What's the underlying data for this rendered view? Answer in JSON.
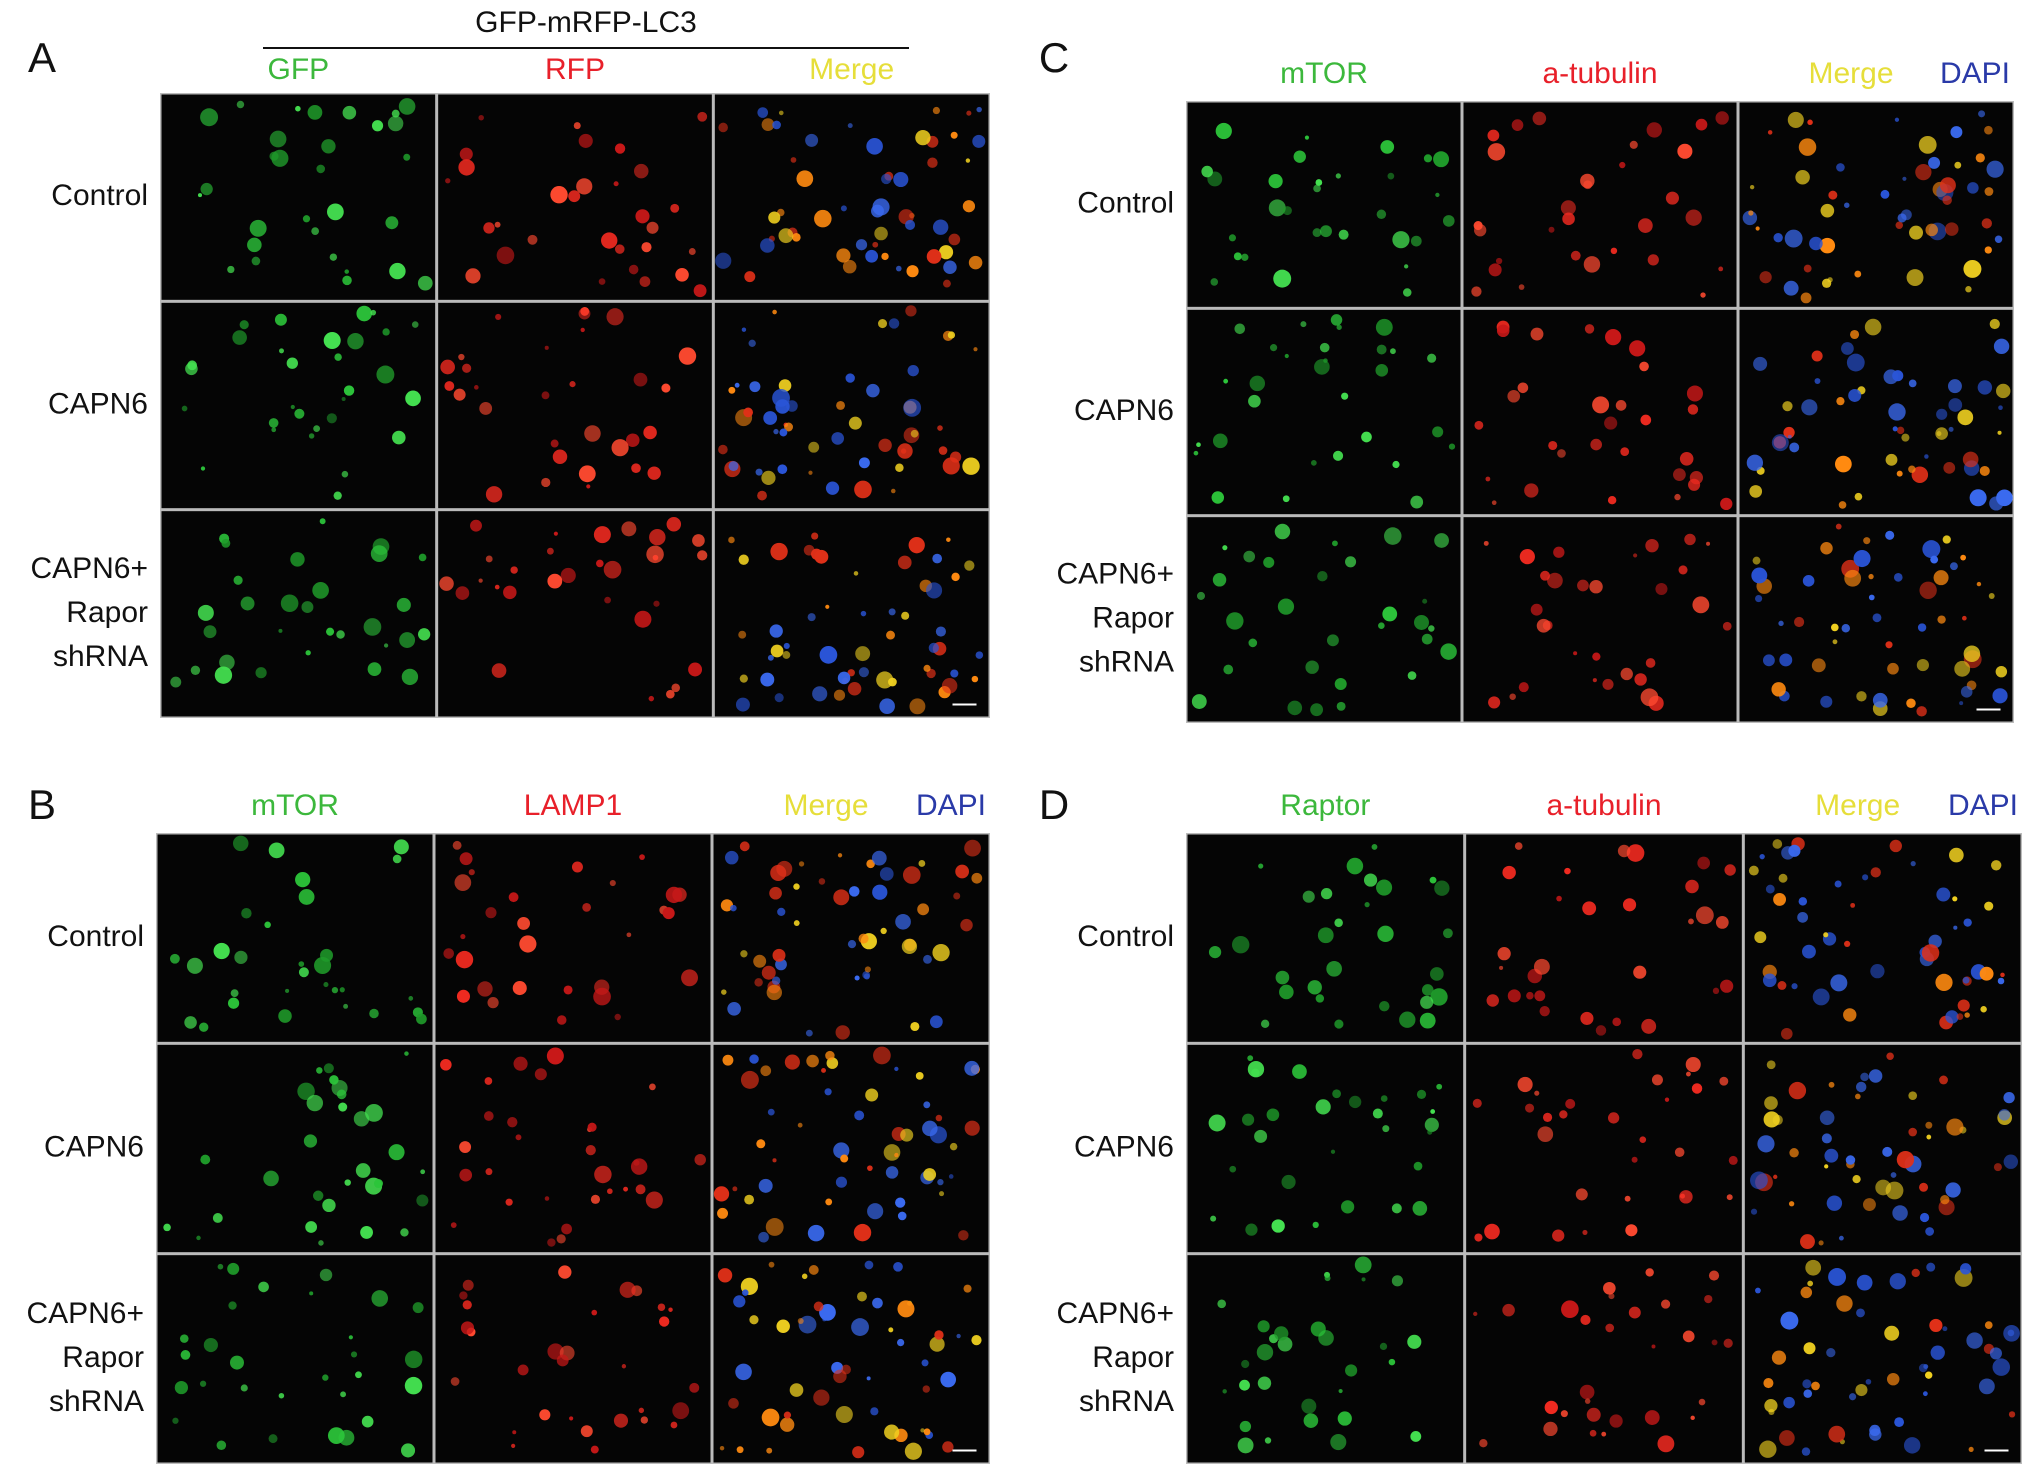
{
  "panels": [
    {
      "letter": "A",
      "header": "GFP-mRFP-LC3",
      "columns": [
        {
          "text": "GFP",
          "color": "#3cb83c"
        },
        {
          "text": "RFP",
          "color": "#e8202a"
        },
        {
          "text": "Merge",
          "color": "#e6de3a"
        }
      ],
      "rows": [
        [
          "Control"
        ],
        [
          "CAPN6"
        ],
        [
          "CAPN6+",
          "Rapor",
          "shRNA"
        ]
      ]
    },
    {
      "letter": "B",
      "columns": [
        {
          "text": "mTOR",
          "color": "#3cb83c"
        },
        {
          "text": "LAMP1",
          "color": "#e8202a"
        },
        {
          "text": "Merge",
          "color": "#e6de3a"
        },
        {
          "text": "DAPI",
          "color": "#2a3aa8"
        }
      ],
      "rows": [
        [
          "Control"
        ],
        [
          "CAPN6"
        ],
        [
          "CAPN6+",
          "Rapor",
          "shRNA"
        ]
      ]
    },
    {
      "letter": "C",
      "columns": [
        {
          "text": "mTOR",
          "color": "#3cb83c"
        },
        {
          "text": "a-tubulin",
          "color": "#e8202a"
        },
        {
          "text": "Merge",
          "color": "#e6de3a"
        },
        {
          "text": "DAPI",
          "color": "#2a3aa8"
        }
      ],
      "rows": [
        [
          "Control"
        ],
        [
          "CAPN6"
        ],
        [
          "CAPN6+",
          "Rapor",
          "shRNA"
        ]
      ]
    },
    {
      "letter": "D",
      "columns": [
        {
          "text": "Raptor",
          "color": "#3cb83c"
        },
        {
          "text": "a-tubulin",
          "color": "#e8202a"
        },
        {
          "text": "Merge",
          "color": "#e6de3a"
        },
        {
          "text": "DAPI",
          "color": "#2a3aa8"
        }
      ],
      "rows": [
        [
          "Control"
        ],
        [
          "CAPN6"
        ],
        [
          "CAPN6+",
          "Rapor",
          "shRNA"
        ]
      ]
    }
  ]
}
